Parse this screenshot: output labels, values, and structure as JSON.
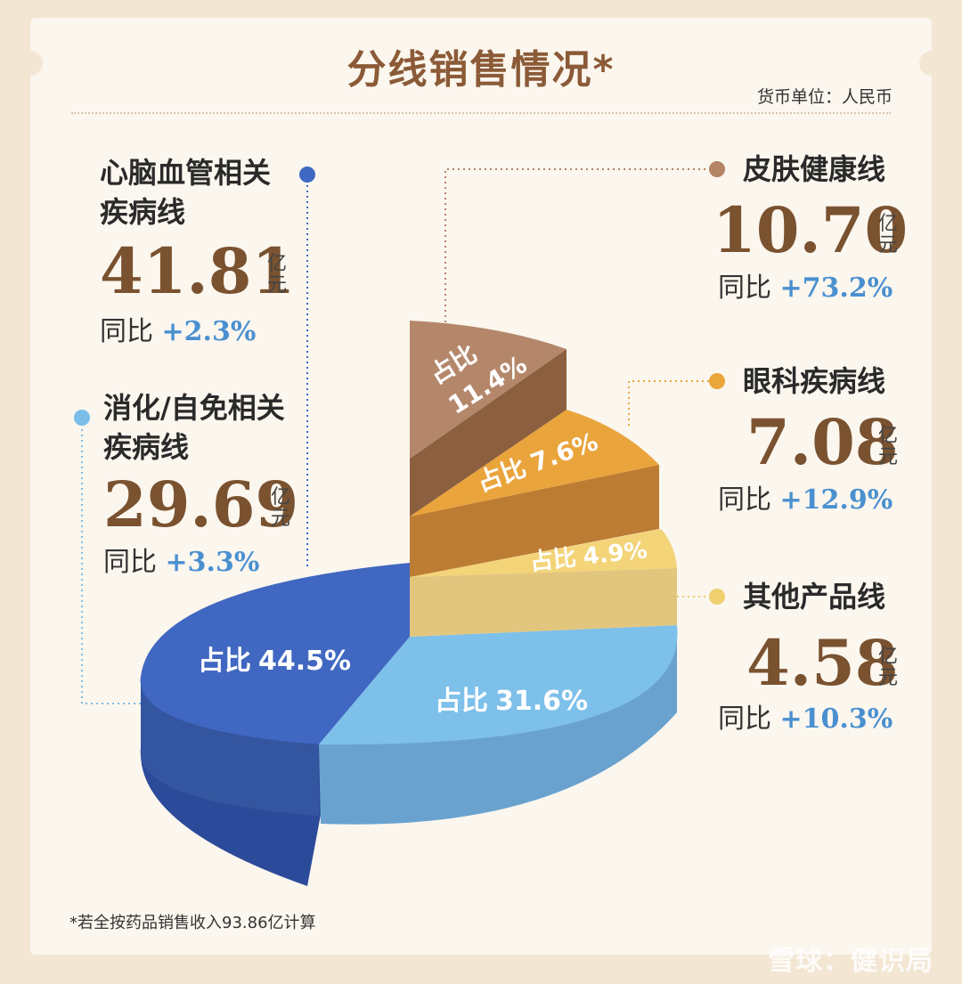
{
  "title": "分线销售情况*",
  "currency_note": "货币单位：人民币",
  "footnote": "*若全按药品销售收入93.86亿计算",
  "watermark": "雪球：健识局",
  "share_prefix": "占比",
  "yoy_prefix": "同比",
  "value_unit": "亿元",
  "colors": {
    "cardio": "#3f68c3",
    "digestive": "#79bde8",
    "skin": "#b48465",
    "eye": "#e9a63a",
    "other": "#f0cf6e",
    "value_text": "#7a5230",
    "yoy_text": "#4a90d0"
  },
  "chart_data": {
    "type": "pie",
    "title": "分线销售情况*",
    "slices": [
      {
        "name": "心脑血管相关疾病线",
        "name_lines": [
          "心脑血管相关",
          "疾病线"
        ],
        "value": 41.81,
        "value_text": "41.81",
        "share": 44.5,
        "share_text": "44.5%",
        "yoy": "+2.3%"
      },
      {
        "name": "消化/自免相关疾病线",
        "name_lines": [
          "消化/自免相关",
          "疾病线"
        ],
        "value": 29.69,
        "value_text": "29.69",
        "share": 31.6,
        "share_text": "31.6%",
        "yoy": "+3.3%"
      },
      {
        "name": "皮肤健康线",
        "name_lines": [
          "皮肤健康线"
        ],
        "value": 10.7,
        "value_text": "10.70",
        "share": 11.4,
        "share_text": "11.4%",
        "yoy": "+73.2%"
      },
      {
        "name": "眼科疾病线",
        "name_lines": [
          "眼科疾病线"
        ],
        "value": 7.08,
        "value_text": "7.08",
        "share": 7.6,
        "share_text": "7.6%",
        "yoy": "+12.9%"
      },
      {
        "name": "其他产品线",
        "name_lines": [
          "其他产品线"
        ],
        "value": 4.58,
        "value_text": "4.58",
        "share": 4.9,
        "share_text": "4.9%",
        "yoy": "+10.3%"
      }
    ]
  }
}
